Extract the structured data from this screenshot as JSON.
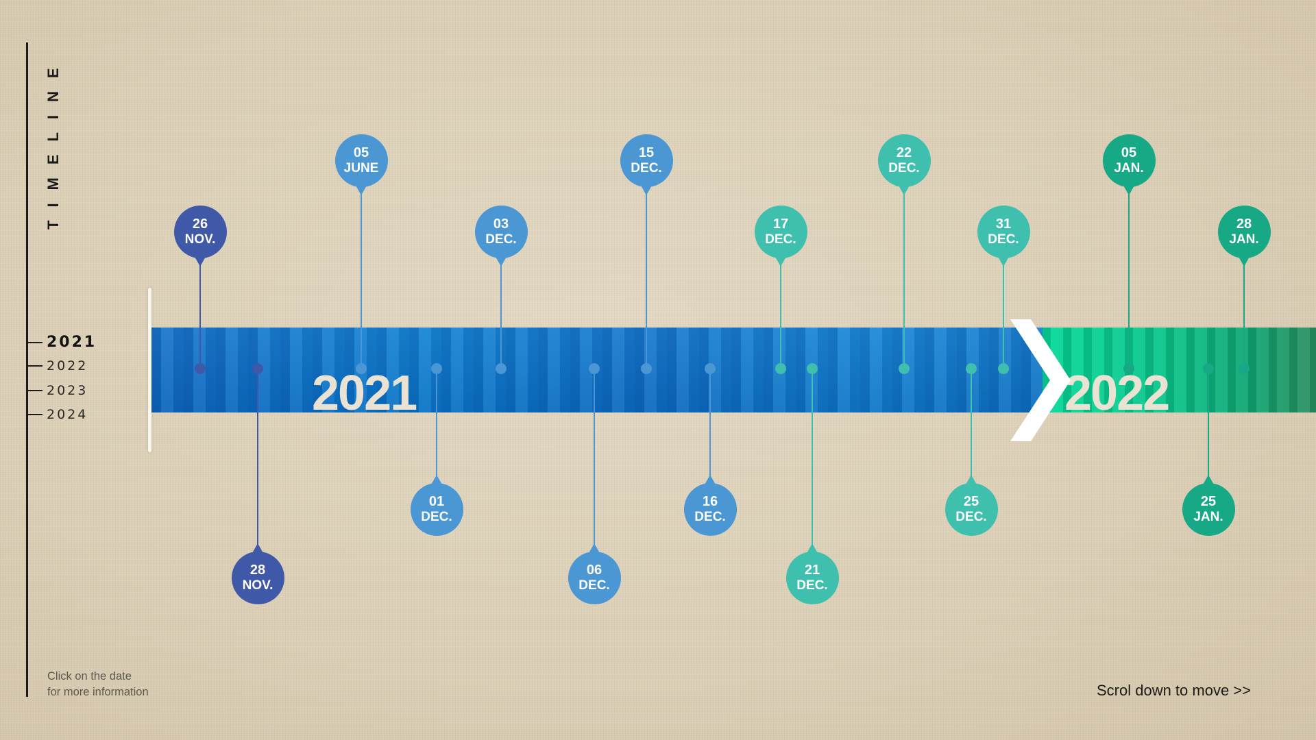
{
  "sidebar": {
    "title": "TIMELINE",
    "years": [
      {
        "label": "2021",
        "active": true
      },
      {
        "label": "2022",
        "active": false
      },
      {
        "label": "2023",
        "active": false
      },
      {
        "label": "2024",
        "active": false
      }
    ]
  },
  "band": {
    "year_2021": "2021",
    "year_2022": "2022"
  },
  "colors": {
    "navy": "#3f58a7",
    "blue": "#4a97d4",
    "teal": "#3fbfae",
    "green": "#17a886",
    "band_blue": "#0e78cf",
    "band_green": "#06d99a"
  },
  "events": [
    {
      "day": "26",
      "month": "NOV.",
      "color": "#3f58a7"
    },
    {
      "day": "28",
      "month": "NOV.",
      "color": "#3f58a7"
    },
    {
      "day": "05",
      "month": "JUNE",
      "color": "#4a97d4"
    },
    {
      "day": "01",
      "month": "DEC.",
      "color": "#4a97d4"
    },
    {
      "day": "03",
      "month": "DEC.",
      "color": "#4a97d4"
    },
    {
      "day": "06",
      "month": "DEC.",
      "color": "#4a97d4"
    },
    {
      "day": "15",
      "month": "DEC.",
      "color": "#4a97d4"
    },
    {
      "day": "16",
      "month": "DEC.",
      "color": "#4a97d4"
    },
    {
      "day": "17",
      "month": "DEC.",
      "color": "#3fbfae"
    },
    {
      "day": "21",
      "month": "DEC.",
      "color": "#3fbfae"
    },
    {
      "day": "22",
      "month": "DEC.",
      "color": "#3fbfae"
    },
    {
      "day": "25",
      "month": "DEC.",
      "color": "#3fbfae"
    },
    {
      "day": "31",
      "month": "DEC.",
      "color": "#3fbfae"
    },
    {
      "day": "05",
      "month": "JAN.",
      "color": "#17a886"
    },
    {
      "day": "25",
      "month": "JAN.",
      "color": "#17a886"
    },
    {
      "day": "28",
      "month": "JAN.",
      "color": "#17a886"
    }
  ],
  "hint": {
    "line1": "Click on the date",
    "line2": "for more information"
  },
  "scroll_hint": "Scrol down to move >>"
}
